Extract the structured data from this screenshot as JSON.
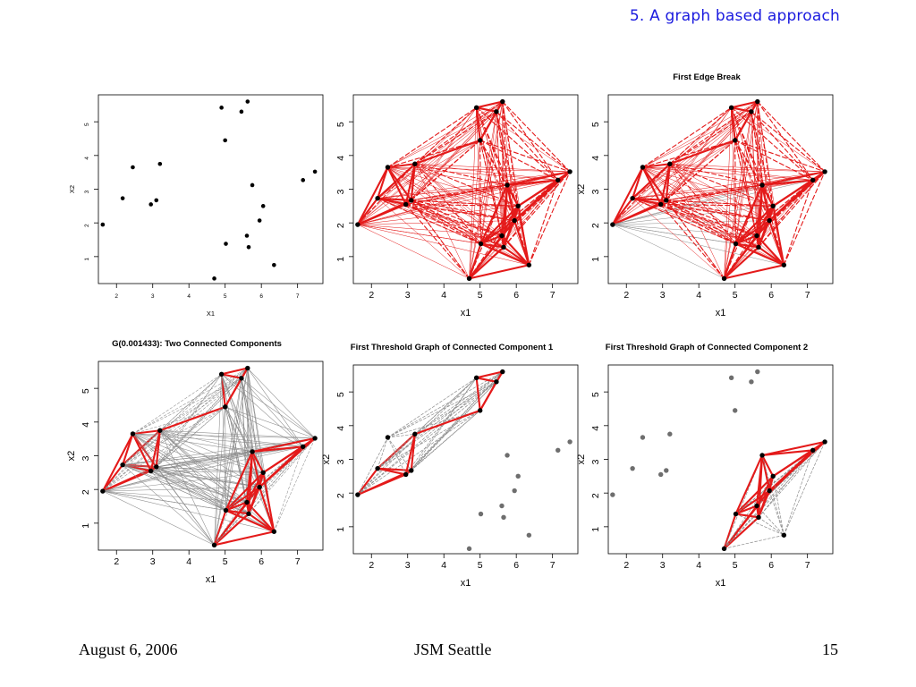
{
  "slide": {
    "section_title": "5. A graph based approach",
    "footer": {
      "date": "August 6, 2006",
      "venue": "JSM Seattle",
      "page": "15"
    }
  },
  "colors": {
    "edge_red": "#e41a1a",
    "edge_gray": "#8c8c8c",
    "point_black": "#000000",
    "point_gray": "#6e6e6e",
    "section_blue": "#1a1adf"
  },
  "chart_data": [
    {
      "type": "scatter",
      "id": "p1",
      "title": "",
      "xlabel": "X1",
      "ylabel": "X2",
      "xlim": [
        1.5,
        7.7
      ],
      "ylim": [
        0.2,
        5.8
      ],
      "xticks": [
        2,
        3,
        4,
        5,
        6,
        7
      ],
      "yticks": [
        1,
        2,
        3,
        4,
        5
      ],
      "grid": false,
      "edges": "none",
      "points": [
        [
          1.62,
          1.95
        ],
        [
          2.17,
          2.73
        ],
        [
          2.45,
          3.65
        ],
        [
          2.95,
          2.55
        ],
        [
          3.1,
          2.67
        ],
        [
          3.2,
          3.75
        ],
        [
          4.9,
          5.42
        ],
        [
          5.0,
          4.45
        ],
        [
          5.45,
          5.3
        ],
        [
          5.62,
          5.6
        ],
        [
          4.7,
          0.35
        ],
        [
          5.02,
          1.38
        ],
        [
          5.6,
          1.62
        ],
        [
          5.65,
          1.28
        ],
        [
          5.75,
          3.12
        ],
        [
          5.95,
          2.07
        ],
        [
          6.05,
          2.5
        ],
        [
          6.35,
          0.75
        ],
        [
          7.15,
          3.27
        ],
        [
          7.48,
          3.52
        ]
      ]
    },
    {
      "type": "scatter",
      "id": "p2",
      "title": "",
      "xlabel": "x1",
      "ylabel": "",
      "xlim": [
        1.5,
        7.7
      ],
      "ylim": [
        0.2,
        5.8
      ],
      "xticks": [
        2,
        3,
        4,
        5,
        6,
        7
      ],
      "yticks": [
        1,
        2,
        3,
        4,
        5
      ],
      "grid": false,
      "edges": "complete_red",
      "points": [
        [
          1.62,
          1.95
        ],
        [
          2.17,
          2.73
        ],
        [
          2.45,
          3.65
        ],
        [
          2.95,
          2.55
        ],
        [
          3.1,
          2.67
        ],
        [
          3.2,
          3.75
        ],
        [
          4.9,
          5.42
        ],
        [
          5.0,
          4.45
        ],
        [
          5.45,
          5.3
        ],
        [
          5.62,
          5.6
        ],
        [
          4.7,
          0.35
        ],
        [
          5.02,
          1.38
        ],
        [
          5.6,
          1.62
        ],
        [
          5.65,
          1.28
        ],
        [
          5.75,
          3.12
        ],
        [
          5.95,
          2.07
        ],
        [
          6.05,
          2.5
        ],
        [
          6.35,
          0.75
        ],
        [
          7.15,
          3.27
        ],
        [
          7.48,
          3.52
        ]
      ]
    },
    {
      "type": "scatter",
      "id": "p3",
      "title": "First Edge Break",
      "xlabel": "x1",
      "ylabel": "x2",
      "xlim": [
        1.5,
        7.7
      ],
      "ylim": [
        0.2,
        5.8
      ],
      "xticks": [
        2,
        3,
        4,
        5,
        6,
        7
      ],
      "yticks": [
        1,
        2,
        3,
        4,
        5
      ],
      "grid": false,
      "edges": "complete_red_one_break",
      "points": [
        [
          1.62,
          1.95
        ],
        [
          2.17,
          2.73
        ],
        [
          2.45,
          3.65
        ],
        [
          2.95,
          2.55
        ],
        [
          3.1,
          2.67
        ],
        [
          3.2,
          3.75
        ],
        [
          4.9,
          5.42
        ],
        [
          5.0,
          4.45
        ],
        [
          5.45,
          5.3
        ],
        [
          5.62,
          5.6
        ],
        [
          4.7,
          0.35
        ],
        [
          5.02,
          1.38
        ],
        [
          5.6,
          1.62
        ],
        [
          5.65,
          1.28
        ],
        [
          5.75,
          3.12
        ],
        [
          5.95,
          2.07
        ],
        [
          6.05,
          2.5
        ],
        [
          6.35,
          0.75
        ],
        [
          7.15,
          3.27
        ],
        [
          7.48,
          3.52
        ]
      ]
    },
    {
      "type": "scatter",
      "id": "p4",
      "title": "G(0.001433):  Two Connected Components",
      "xlabel": "x1",
      "ylabel": "x2",
      "xlim": [
        1.5,
        7.7
      ],
      "ylim": [
        0.2,
        5.8
      ],
      "xticks": [
        2,
        3,
        4,
        5,
        6,
        7
      ],
      "yticks": [
        1,
        2,
        3,
        4,
        5
      ],
      "grid": false,
      "edges": "two_components",
      "points": [
        [
          1.62,
          1.95
        ],
        [
          2.17,
          2.73
        ],
        [
          2.45,
          3.65
        ],
        [
          2.95,
          2.55
        ],
        [
          3.1,
          2.67
        ],
        [
          3.2,
          3.75
        ],
        [
          4.9,
          5.42
        ],
        [
          5.0,
          4.45
        ],
        [
          5.45,
          5.3
        ],
        [
          5.62,
          5.6
        ],
        [
          4.7,
          0.35
        ],
        [
          5.02,
          1.38
        ],
        [
          5.6,
          1.62
        ],
        [
          5.65,
          1.28
        ],
        [
          5.75,
          3.12
        ],
        [
          5.95,
          2.07
        ],
        [
          6.05,
          2.5
        ],
        [
          6.35,
          0.75
        ],
        [
          7.15,
          3.27
        ],
        [
          7.48,
          3.52
        ]
      ]
    },
    {
      "type": "scatter",
      "id": "p5",
      "title": "First Threshold Graph of Connected Component 1",
      "xlabel": "x1",
      "ylabel": "x2",
      "xlim": [
        1.5,
        7.7
      ],
      "ylim": [
        0.2,
        5.8
      ],
      "xticks": [
        2,
        3,
        4,
        5,
        6,
        7
      ],
      "yticks": [
        1,
        2,
        3,
        4,
        5
      ],
      "grid": false,
      "edges": "component_1",
      "points": [
        [
          1.62,
          1.95
        ],
        [
          2.17,
          2.73
        ],
        [
          2.45,
          3.65
        ],
        [
          2.95,
          2.55
        ],
        [
          3.1,
          2.67
        ],
        [
          3.2,
          3.75
        ],
        [
          4.9,
          5.42
        ],
        [
          5.0,
          4.45
        ],
        [
          5.45,
          5.3
        ],
        [
          5.62,
          5.6
        ],
        [
          4.7,
          0.35
        ],
        [
          5.02,
          1.38
        ],
        [
          5.6,
          1.62
        ],
        [
          5.65,
          1.28
        ],
        [
          5.75,
          3.12
        ],
        [
          5.95,
          2.07
        ],
        [
          6.05,
          2.5
        ],
        [
          6.35,
          0.75
        ],
        [
          7.15,
          3.27
        ],
        [
          7.48,
          3.52
        ]
      ]
    },
    {
      "type": "scatter",
      "id": "p6",
      "title": "First Threshold Graph of Connected Component 2",
      "xlabel": "x1",
      "ylabel": "x2",
      "xlim": [
        1.5,
        7.7
      ],
      "ylim": [
        0.2,
        5.8
      ],
      "xticks": [
        2,
        3,
        4,
        5,
        6,
        7
      ],
      "yticks": [
        1,
        2,
        3,
        4,
        5
      ],
      "grid": false,
      "edges": "component_2",
      "points": [
        [
          1.62,
          1.95
        ],
        [
          2.17,
          2.73
        ],
        [
          2.45,
          3.65
        ],
        [
          2.95,
          2.55
        ],
        [
          3.1,
          2.67
        ],
        [
          3.2,
          3.75
        ],
        [
          4.9,
          5.42
        ],
        [
          5.0,
          4.45
        ],
        [
          5.45,
          5.3
        ],
        [
          5.62,
          5.6
        ],
        [
          4.7,
          0.35
        ],
        [
          5.02,
          1.38
        ],
        [
          5.6,
          1.62
        ],
        [
          5.65,
          1.28
        ],
        [
          5.75,
          3.12
        ],
        [
          5.95,
          2.07
        ],
        [
          6.05,
          2.5
        ],
        [
          6.35,
          0.75
        ],
        [
          7.15,
          3.27
        ],
        [
          7.48,
          3.52
        ]
      ]
    }
  ]
}
